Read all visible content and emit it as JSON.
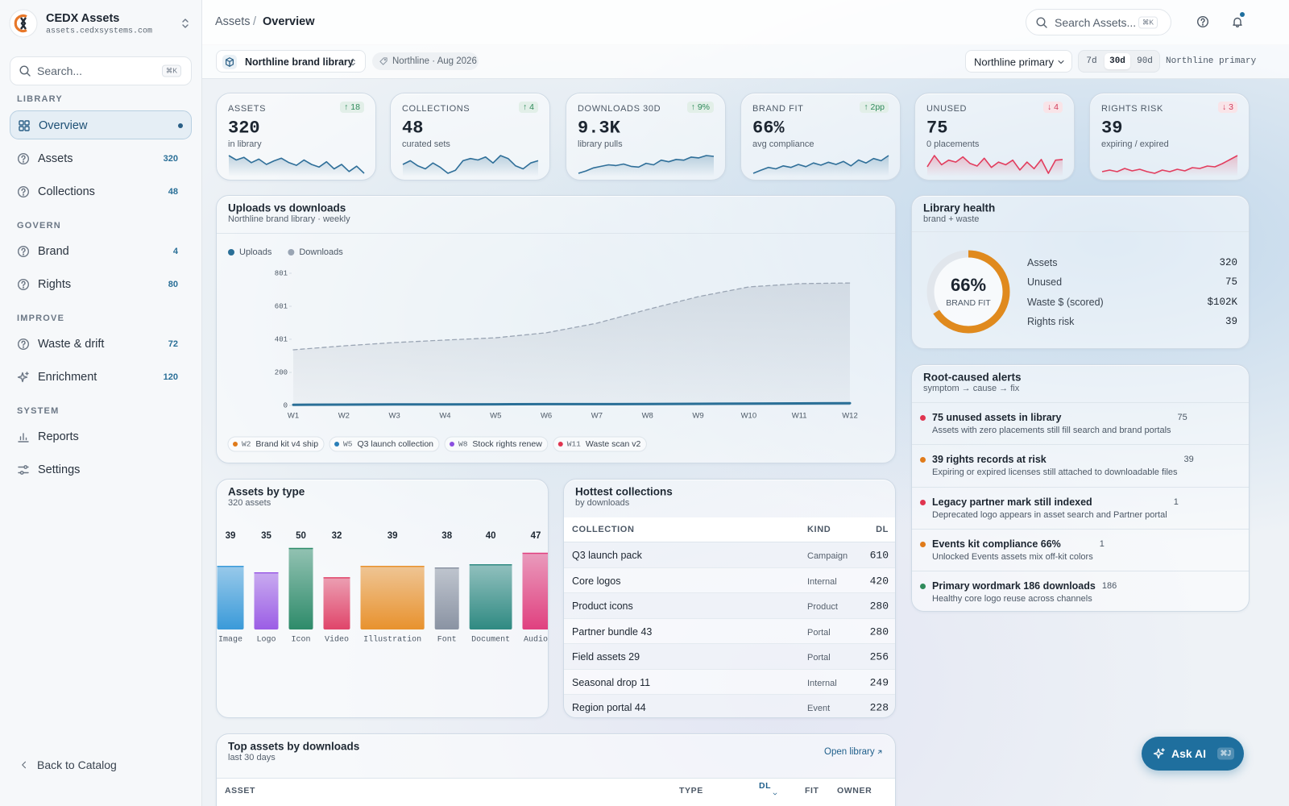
{
  "sidebar": {
    "brand": "CEDX Assets",
    "domain": "assets.cedxsystems.com",
    "search": "Search...",
    "search_kbd": "⌘K",
    "sections": [
      {
        "title": "LIBRARY",
        "items": [
          {
            "label": "Overview",
            "active": true
          },
          {
            "label": "Assets",
            "count": 320
          },
          {
            "label": "Collections",
            "count": 48
          }
        ]
      },
      {
        "title": "GOVERN",
        "items": [
          {
            "label": "Brand",
            "count": 4
          },
          {
            "label": "Rights",
            "count": 80
          }
        ]
      },
      {
        "title": "IMPROVE",
        "items": [
          {
            "label": "Waste & drift",
            "count": 72
          },
          {
            "label": "Enrichment",
            "count": 120
          }
        ]
      },
      {
        "title": "SYSTEM",
        "items": [
          {
            "label": "Reports"
          },
          {
            "label": "Settings"
          }
        ]
      }
    ],
    "back": "Back to Catalog"
  },
  "topbar": {
    "crumbs": [
      "Assets",
      "Overview"
    ],
    "crumb_sep": "/",
    "search": "Search Assets...",
    "search_kbd": "⌘K"
  },
  "toolbar": {
    "library": "Northline brand library",
    "meta": "Northline · Aug 2026",
    "view": "Northline primary",
    "ranges": [
      "7d",
      "30d",
      "90d"
    ],
    "active_range": 1,
    "view_label": "Northline primary"
  },
  "kpis": [
    {
      "label": "ASSETS",
      "delta": "↑ 18",
      "delta_color": "#2f8a5b",
      "value": "320",
      "sub": "in library",
      "spark_color": "#2f6f99",
      "spark": [
        60,
        55,
        58,
        52,
        56,
        50,
        54,
        57,
        52,
        49,
        55,
        50,
        47,
        53,
        45,
        50,
        42,
        48,
        40
      ]
    },
    {
      "label": "COLLECTIONS",
      "delta": "↑ 4",
      "delta_color": "#2f8a5b",
      "value": "48",
      "sub": "curated sets",
      "spark_color": "#2f6f99",
      "spark": [
        50,
        55,
        48,
        44,
        52,
        46,
        38,
        42,
        55,
        58,
        56,
        60,
        52,
        62,
        58,
        48,
        44,
        52,
        55
      ]
    },
    {
      "label": "DOWNLOADS 30D",
      "delta": "↑ 9%",
      "delta_color": "#2f8a5b",
      "value": "9.3K",
      "sub": "library pulls",
      "spark_color": "#2f6f99",
      "spark": [
        35,
        38,
        42,
        44,
        46,
        45,
        47,
        44,
        43,
        48,
        46,
        52,
        50,
        53,
        52,
        56,
        55,
        58,
        57
      ]
    },
    {
      "label": "BRAND FIT",
      "delta": "↑ 2pp",
      "delta_color": "#2f8a5b",
      "value": "66%",
      "sub": "avg compliance",
      "spark_color": "#2f6f99",
      "spark": [
        38,
        42,
        46,
        44,
        48,
        46,
        50,
        47,
        52,
        49,
        53,
        50,
        54,
        48,
        56,
        52,
        58,
        55,
        62
      ]
    },
    {
      "label": "UNUSED",
      "delta": "↓ 4",
      "delta_color": "#d23b5a",
      "value": "75",
      "sub": "0 placements",
      "spark_color": "#e23d5e",
      "spark": [
        45,
        62,
        48,
        55,
        52,
        60,
        50,
        46,
        58,
        44,
        52,
        48,
        55,
        40,
        52,
        42,
        56,
        35,
        55,
        56
      ]
    },
    {
      "label": "RIGHTS RISK",
      "delta": "↓ 3",
      "delta_color": "#d23b5a",
      "value": "39",
      "sub": "expiring / expired",
      "spark_color": "#e23d5e",
      "spark": [
        40,
        42,
        40,
        44,
        41,
        43,
        40,
        38,
        42,
        40,
        43,
        41,
        45,
        44,
        47,
        46,
        50,
        55,
        60
      ]
    }
  ],
  "uploads": {
    "type": "line",
    "title": "Uploads vs downloads",
    "subtitle": "Northline brand library · weekly",
    "categories": [
      "W1",
      "W2",
      "W3",
      "W4",
      "W5",
      "W6",
      "W7",
      "W8",
      "W9",
      "W10",
      "W11",
      "W12"
    ],
    "series": [
      {
        "name": "Uploads",
        "color": "#2a6f97",
        "dashed": false,
        "values": [
          4,
          5,
          6,
          6,
          7,
          8,
          8,
          9,
          10,
          11,
          12,
          13
        ]
      },
      {
        "name": "Downloads",
        "color": "#9aa5b4",
        "dashed": true,
        "values": [
          337,
          361,
          381,
          396,
          410,
          440,
          498,
          581,
          659,
          718,
          738,
          742
        ]
      }
    ],
    "ylim": [
      0,
      801
    ],
    "yticks": [
      0,
      200,
      401,
      601,
      801
    ],
    "events": [
      {
        "week": "W2",
        "label": "Brand kit v4 ship",
        "color": "#e07b1a"
      },
      {
        "week": "W5",
        "label": "Q3 launch collection",
        "color": "#2a7fb8"
      },
      {
        "week": "W8",
        "label": "Stock rights renew",
        "color": "#8b4fe0"
      },
      {
        "week": "W11",
        "label": "Waste scan v2",
        "color": "#e0344f"
      }
    ]
  },
  "health": {
    "title": "Library health",
    "subtitle": "brand + waste",
    "donut": {
      "type": "donut",
      "values": [
        66
      ],
      "value_labels": [
        "66%"
      ],
      "label": "BRAND FIT",
      "color": "#e08a1e"
    },
    "rows": [
      {
        "label": "Assets",
        "value": 320
      },
      {
        "label": "Unused",
        "value": 75
      },
      {
        "label": "Waste $ (scored)",
        "value": "$102K"
      },
      {
        "label": "Rights risk",
        "value": 39
      }
    ]
  },
  "alerts": {
    "title": "Root-caused alerts",
    "subtitle": "symptom → cause → fix",
    "items": [
      {
        "title": "75 unused assets in library",
        "count": 75,
        "desc": "Assets with zero placements still fill search and brand portals",
        "color": "#e0344f"
      },
      {
        "title": "39 rights records at risk",
        "count": 39,
        "desc": "Expiring or expired licenses still attached to downloadable files",
        "color": "#e07b1a"
      },
      {
        "title": "Legacy partner mark still indexed",
        "count": 1,
        "desc": "Deprecated logo appears in asset search and Partner portal",
        "color": "#e0344f"
      },
      {
        "title": "Events kit compliance 66%",
        "count": 1,
        "desc": "Unlocked Events assets mix off-kit colors",
        "color": "#e07b1a"
      },
      {
        "title": "Primary wordmark 186 downloads",
        "count": 186,
        "desc": "Healthy core logo reuse across channels",
        "color": "#2f8a5b"
      }
    ]
  },
  "types": {
    "type": "bar",
    "title": "Assets by type",
    "subtitle": "320 assets",
    "categories": [
      "Image",
      "Logo",
      "Icon",
      "Video",
      "Illustration",
      "Font",
      "Document",
      "Audio"
    ],
    "values": [
      39,
      35,
      50,
      32,
      39,
      38,
      40,
      47
    ],
    "colors": [
      "#3a9ad9",
      "#9b5de5",
      "#2e8b6a",
      "#e0456a",
      "#e8922e",
      "#8a93a3",
      "#2f8a82",
      "#e0407f"
    ]
  },
  "hottest": {
    "title": "Hottest collections",
    "subtitle": "by downloads",
    "columns": [
      "COLLECTION",
      "KIND",
      "DL"
    ],
    "rows": [
      [
        "Q3 launch pack",
        "Campaign",
        610
      ],
      [
        "Core logos",
        "Internal",
        420
      ],
      [
        "Product icons",
        "Product",
        280
      ],
      [
        "Partner bundle 43",
        "Portal",
        280
      ],
      [
        "Field assets 29",
        "Portal",
        256
      ],
      [
        "Seasonal drop 11",
        "Internal",
        249
      ],
      [
        "Region portal 44",
        "Event",
        228
      ]
    ]
  },
  "top_assets": {
    "title": "Top assets by downloads",
    "subtitle": "last 30 days",
    "link": "Open library",
    "columns": [
      "ASSET",
      "TYPE",
      "DL",
      "FIT",
      "OWNER"
    ]
  },
  "ask_ai": {
    "label": "Ask AI",
    "kbd": "⌘J"
  }
}
